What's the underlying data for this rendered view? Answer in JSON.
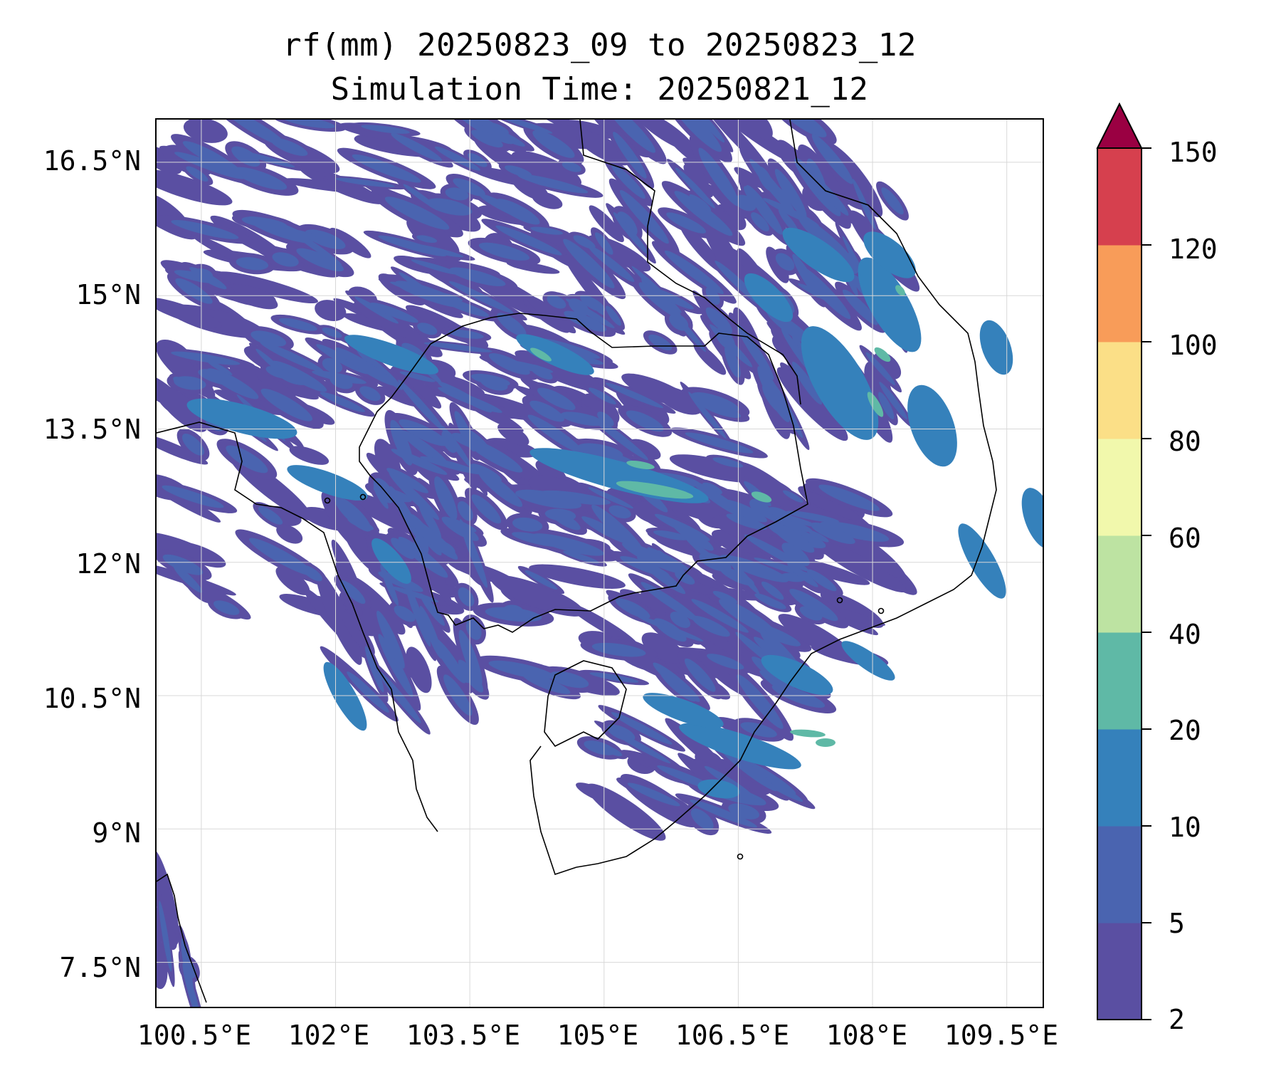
{
  "title": {
    "line1": "rf(mm) 20250823_09 to 20250823_12",
    "line2": "Simulation Time: 20250821_12"
  },
  "map": {
    "variable": "rainfall",
    "lat_ticks": [
      "16.5°N",
      "15°N",
      "13.5°N",
      "12°N",
      "10.5°N",
      "9°N",
      "7.5°N"
    ],
    "lon_ticks": [
      "100.5°E",
      "102°E",
      "103.5°E",
      "105°E",
      "106.5°E",
      "108°E",
      "109.5°E"
    ],
    "gridlines": true,
    "coastline_color": "#000000"
  },
  "colorbar": {
    "levels": [
      "2",
      "5",
      "10",
      "20",
      "40",
      "60",
      "80",
      "100",
      "120",
      "150"
    ],
    "colors": [
      "#5a4fa2",
      "#4a64b0",
      "#3581bb",
      "#5fb9a6",
      "#bde3a2",
      "#f1f8ac",
      "#fbdf87",
      "#f89c59",
      "#d6404e",
      "#9a0042"
    ],
    "extend": "max"
  },
  "fields": {
    "low_color": "#5a4fa2",
    "mid_color": "#4a64b0",
    "high_color": "#3581bb",
    "peak_color": "#5fb9a6"
  }
}
